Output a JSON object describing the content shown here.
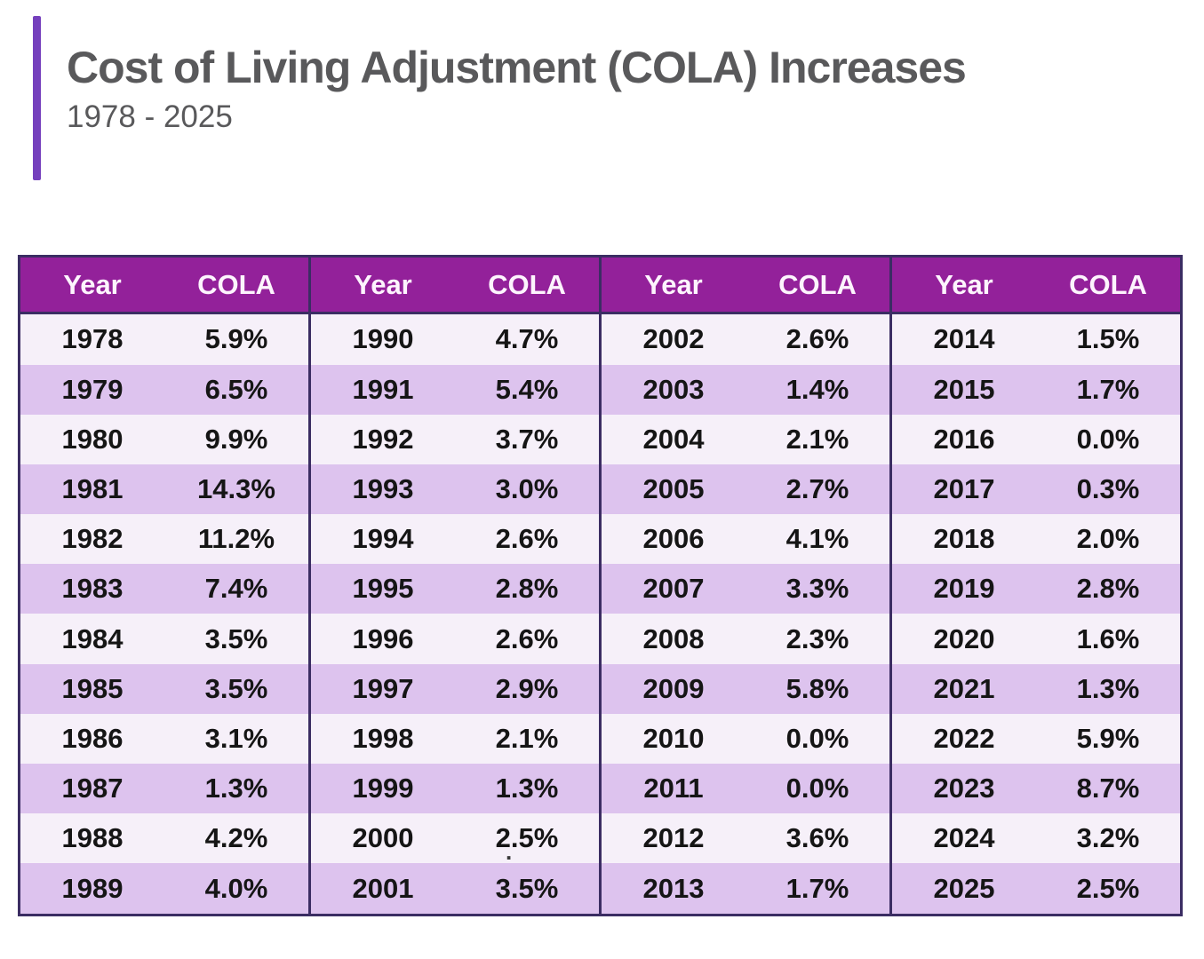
{
  "header": {
    "title": "Cost of Living Adjustment (COLA) Increases",
    "subtitle": "1978 - 2025"
  },
  "colors": {
    "accent-bar": "#7540bd",
    "header-bg": "#93219a",
    "header-text": "#fdf4fd",
    "row-light": "#f6f0f9",
    "row-dark": "#ddc3ee",
    "table-border": "#3b2d63",
    "cell-text": "#151515",
    "title-text": "#59595b"
  },
  "table": {
    "column_headers": [
      "Year",
      "COLA"
    ],
    "num_groups": 4
  },
  "artifact_dot": ".",
  "chart_data": {
    "type": "table",
    "title": "Cost of Living Adjustment (COLA) Increases",
    "subtitle": "1978 - 2025",
    "columns": [
      "Year",
      "COLA"
    ],
    "layout": "4 side-by-side column groups of 12 rows each; years read down each group; header row repeated per group; alternating light/dark lavender row stripes",
    "rows": [
      [
        "1978",
        "5.9%"
      ],
      [
        "1979",
        "6.5%"
      ],
      [
        "1980",
        "9.9%"
      ],
      [
        "1981",
        "14.3%"
      ],
      [
        "1982",
        "11.2%"
      ],
      [
        "1983",
        "7.4%"
      ],
      [
        "1984",
        "3.5%"
      ],
      [
        "1985",
        "3.5%"
      ],
      [
        "1986",
        "3.1%"
      ],
      [
        "1987",
        "1.3%"
      ],
      [
        "1988",
        "4.2%"
      ],
      [
        "1989",
        "4.0%"
      ],
      [
        "1990",
        "4.7%"
      ],
      [
        "1991",
        "5.4%"
      ],
      [
        "1992",
        "3.7%"
      ],
      [
        "1993",
        "3.0%"
      ],
      [
        "1994",
        "2.6%"
      ],
      [
        "1995",
        "2.8%"
      ],
      [
        "1996",
        "2.6%"
      ],
      [
        "1997",
        "2.9%"
      ],
      [
        "1998",
        "2.1%"
      ],
      [
        "1999",
        "1.3%"
      ],
      [
        "2000",
        "2.5%"
      ],
      [
        "2001",
        "3.5%"
      ],
      [
        "2002",
        "2.6%"
      ],
      [
        "2003",
        "1.4%"
      ],
      [
        "2004",
        "2.1%"
      ],
      [
        "2005",
        "2.7%"
      ],
      [
        "2006",
        "4.1%"
      ],
      [
        "2007",
        "3.3%"
      ],
      [
        "2008",
        "2.3%"
      ],
      [
        "2009",
        "5.8%"
      ],
      [
        "2010",
        "0.0%"
      ],
      [
        "2011",
        "0.0%"
      ],
      [
        "2012",
        "3.6%"
      ],
      [
        "2013",
        "1.7%"
      ],
      [
        "2014",
        "1.5%"
      ],
      [
        "2015",
        "1.7%"
      ],
      [
        "2016",
        "0.0%"
      ],
      [
        "2017",
        "0.3%"
      ],
      [
        "2018",
        "2.0%"
      ],
      [
        "2019",
        "2.8%"
      ],
      [
        "2020",
        "1.6%"
      ],
      [
        "2021",
        "1.3%"
      ],
      [
        "2022",
        "5.9%"
      ],
      [
        "2023",
        "8.7%"
      ],
      [
        "2024",
        "3.2%"
      ],
      [
        "2025",
        "2.5%"
      ]
    ]
  }
}
